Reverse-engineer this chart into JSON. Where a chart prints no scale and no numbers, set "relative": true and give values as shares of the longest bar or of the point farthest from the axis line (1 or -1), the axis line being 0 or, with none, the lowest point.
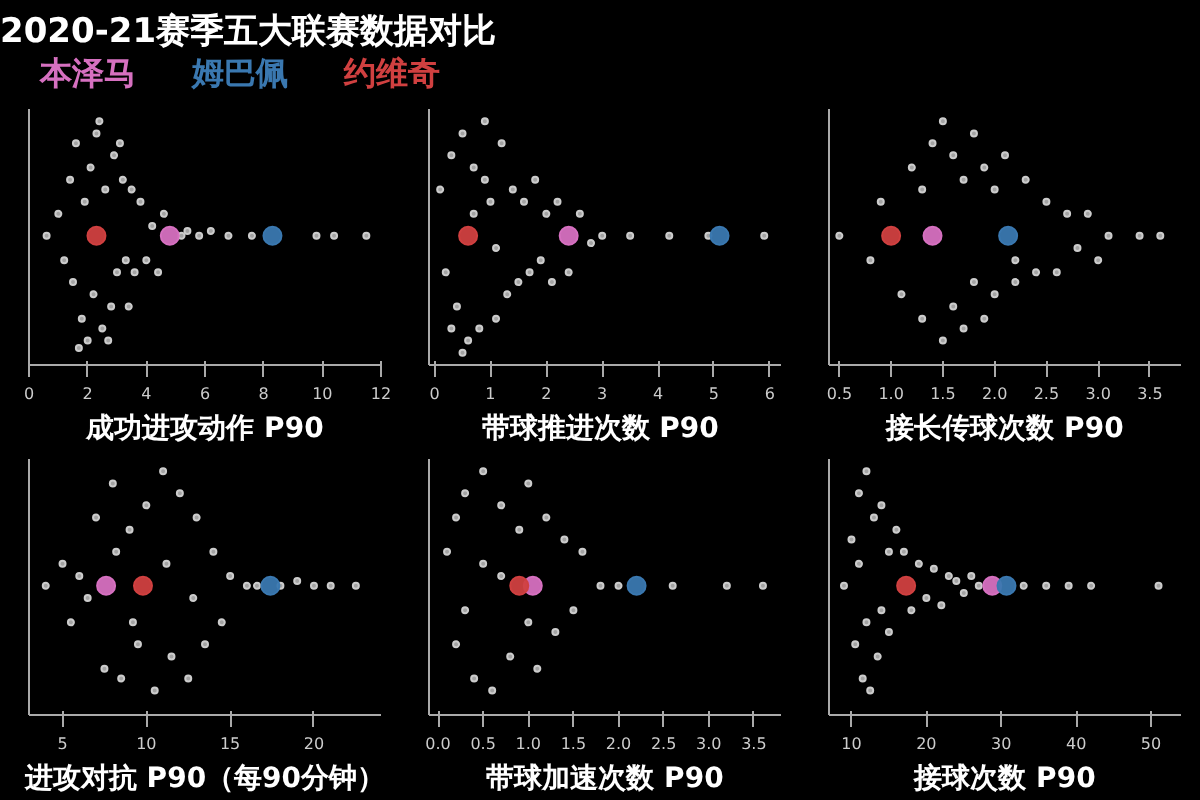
{
  "chart_data": [
    {
      "type": "scatter",
      "title": "2020-21赛季五大联赛数据对比",
      "xlabel": "成功进攻动作 P90",
      "xlim": [
        0,
        12
      ],
      "relative": true,
      "xticks": [
        0,
        2,
        4,
        6,
        8,
        10,
        12
      ],
      "tick_labels": "x",
      "grid": false,
      "legend": "top",
      "marker": "circle",
      "series": [
        {
          "color": "#cccccc",
          "x": [
            0.6,
            1.0,
            1.2,
            1.4,
            1.5,
            1.6,
            1.8,
            1.9,
            2.0,
            2.1,
            2.2,
            2.3,
            2.5,
            2.6,
            2.8,
            2.9,
            3.0,
            3.2,
            3.3,
            3.5,
            3.6,
            3.8,
            4.0,
            4.2,
            4.4,
            4.6,
            5.2,
            5.4,
            5.8,
            6.2,
            6.8,
            7.6,
            9.8,
            10.4,
            11.5,
            1.7,
            2.4,
            2.7,
            3.1,
            3.4
          ],
          "values": [
            0.53,
            0.62,
            0.43,
            0.76,
            0.34,
            0.91,
            0.19,
            0.67,
            0.1,
            0.81,
            0.29,
            0.95,
            0.15,
            0.72,
            0.24,
            0.86,
            0.38,
            0.76,
            0.43,
            0.72,
            0.38,
            0.67,
            0.43,
            0.57,
            0.38,
            0.62,
            0.53,
            0.55,
            0.53,
            0.55,
            0.53,
            0.53,
            0.53,
            0.53,
            0.53,
            0.07,
            1.0,
            0.1,
            0.91,
            0.24
          ]
        },
        {
          "name": "本泽马",
          "color": "#d670c0",
          "x": [
            4.8
          ],
          "values": [
            0.53
          ]
        },
        {
          "name": "姆巴佩",
          "color": "#3a78b0",
          "x": [
            8.3
          ],
          "values": [
            0.53
          ]
        },
        {
          "name": "约维奇",
          "color": "#d04040",
          "x": [
            2.3
          ],
          "values": [
            0.53
          ]
        }
      ]
    },
    {
      "type": "scatter",
      "xlabel": "带球推进次数  P90",
      "xlim": [
        -0.1,
        6.2
      ],
      "relative": true,
      "xticks": [
        0,
        1,
        2,
        3,
        4,
        5,
        6
      ],
      "tick_labels": "x",
      "grid": false,
      "marker": "circle",
      "series": [
        {
          "color": "#cccccc",
          "x": [
            0.1,
            0.2,
            0.3,
            0.4,
            0.5,
            0.6,
            0.7,
            0.8,
            0.9,
            1.0,
            1.1,
            1.2,
            1.3,
            1.4,
            1.5,
            1.6,
            1.7,
            1.8,
            1.9,
            2.0,
            2.1,
            2.2,
            2.4,
            2.6,
            2.8,
            3.0,
            3.5,
            4.2,
            4.9,
            5.9,
            0.5,
            0.9,
            1.1,
            0.7,
            0.3
          ],
          "values": [
            0.72,
            0.38,
            0.86,
            0.24,
            0.95,
            0.1,
            0.81,
            0.15,
            1.0,
            0.67,
            0.19,
            0.91,
            0.29,
            0.72,
            0.34,
            0.67,
            0.38,
            0.76,
            0.43,
            0.62,
            0.34,
            0.67,
            0.38,
            0.62,
            0.5,
            0.53,
            0.53,
            0.53,
            0.53,
            0.53,
            0.05,
            0.76,
            0.48,
            0.62,
            0.15
          ]
        },
        {
          "color": "#d670c0",
          "x": [
            2.4
          ],
          "values": [
            0.53
          ]
        },
        {
          "color": "#3a78b0",
          "x": [
            5.1
          ],
          "values": [
            0.53
          ]
        },
        {
          "color": "#d04040",
          "x": [
            0.6
          ],
          "values": [
            0.53
          ]
        }
      ]
    },
    {
      "type": "scatter",
      "xlabel": "接长传球次数 P90",
      "xlim": [
        0.4,
        3.8
      ],
      "relative": true,
      "xticks": [
        0.5,
        {
          "value": 1,
          "label": "1.0"
        },
        1.5,
        {
          "value": 2,
          "label": "2.0"
        },
        2.5,
        {
          "value": 3,
          "label": "3.0"
        },
        3.5
      ],
      "tick_labels": "x",
      "grid": false,
      "marker": "circle",
      "series": [
        {
          "color": "#cccccc",
          "x": [
            0.5,
            0.8,
            0.9,
            1.1,
            1.2,
            1.3,
            1.4,
            1.5,
            1.5,
            1.6,
            1.6,
            1.7,
            1.7,
            1.8,
            1.8,
            1.9,
            1.9,
            2.0,
            2.0,
            2.1,
            2.2,
            2.3,
            2.4,
            2.5,
            2.6,
            2.7,
            2.8,
            2.9,
            3.0,
            3.1,
            3.4,
            3.6,
            1.3,
            2.2
          ],
          "values": [
            0.53,
            0.43,
            0.67,
            0.29,
            0.81,
            0.19,
            0.91,
            0.1,
            1.0,
            0.24,
            0.86,
            0.15,
            0.76,
            0.95,
            0.34,
            0.81,
            0.19,
            0.72,
            0.29,
            0.86,
            0.34,
            0.76,
            0.38,
            0.67,
            0.38,
            0.62,
            0.48,
            0.62,
            0.43,
            0.53,
            0.53,
            0.53,
            0.72,
            0.43
          ]
        },
        {
          "color": "#d670c0",
          "x": [
            1.4
          ],
          "values": [
            0.53
          ]
        },
        {
          "color": "#3a78b0",
          "x": [
            2.13
          ],
          "values": [
            0.53
          ]
        },
        {
          "color": "#d04040",
          "x": [
            1.0
          ],
          "values": [
            0.53
          ]
        }
      ]
    },
    {
      "type": "scatter",
      "xlabel": "进攻对抗 P90（每90分钟）",
      "xlim": [
        3,
        24
      ],
      "relative": true,
      "xticks": [
        5,
        10,
        15,
        20
      ],
      "tick_labels": "x",
      "grid": false,
      "marker": "circle",
      "series": [
        {
          "color": "#cccccc",
          "x": [
            4.0,
            5.0,
            5.5,
            6.0,
            6.5,
            7.0,
            7.5,
            8.0,
            8.5,
            9.0,
            9.5,
            10.0,
            10.5,
            11.0,
            11.5,
            12.0,
            12.5,
            13.0,
            13.5,
            14.0,
            14.5,
            15.0,
            16.0,
            16.6,
            18.0,
            19.0,
            20.0,
            21.0,
            22.5,
            8.2,
            9.2,
            11.2,
            12.8
          ],
          "values": [
            0.53,
            0.62,
            0.38,
            0.57,
            0.48,
            0.81,
            0.19,
            0.95,
            0.15,
            0.76,
            0.29,
            0.86,
            0.1,
            1.0,
            0.24,
            0.91,
            0.15,
            0.81,
            0.29,
            0.67,
            0.38,
            0.57,
            0.53,
            0.53,
            0.53,
            0.55,
            0.53,
            0.53,
            0.53,
            0.67,
            0.38,
            0.62,
            0.48
          ]
        },
        {
          "color": "#d670c0",
          "x": [
            7.6
          ],
          "values": [
            0.53
          ]
        },
        {
          "color": "#3a78b0",
          "x": [
            17.4
          ],
          "values": [
            0.53
          ]
        },
        {
          "color": "#d04040",
          "x": [
            9.8
          ],
          "values": [
            0.53
          ]
        }
      ]
    },
    {
      "type": "scatter",
      "xlabel": "带球加速次数 P90",
      "xlim": [
        -0.1,
        3.8
      ],
      "relative": true,
      "xticks": [
        {
          "value": 0,
          "label": "0.0"
        },
        0.5,
        {
          "value": 1,
          "label": "1.0"
        },
        1.5,
        {
          "value": 2,
          "label": "2.0"
        },
        2.5,
        {
          "value": 3,
          "label": "3.0"
        },
        3.5
      ],
      "tick_labels": "x",
      "grid": false,
      "marker": "circle",
      "series": [
        {
          "color": "#cccccc",
          "x": [
            0.1,
            0.2,
            0.3,
            0.4,
            0.5,
            0.6,
            0.7,
            0.8,
            0.9,
            1.0,
            1.1,
            1.2,
            1.3,
            1.4,
            1.5,
            1.6,
            1.8,
            2.0,
            2.6,
            3.2,
            3.6,
            0.3,
            0.5,
            0.7,
            1.0,
            0.2
          ],
          "values": [
            0.67,
            0.29,
            0.91,
            0.15,
            1.0,
            0.1,
            0.86,
            0.24,
            0.76,
            0.95,
            0.19,
            0.81,
            0.34,
            0.72,
            0.43,
            0.67,
            0.53,
            0.53,
            0.53,
            0.53,
            0.53,
            0.43,
            0.62,
            0.57,
            0.38,
            0.81
          ]
        },
        {
          "color": "#d670c0",
          "x": [
            1.05
          ],
          "values": [
            0.53
          ]
        },
        {
          "color": "#3a78b0",
          "x": [
            2.2
          ],
          "values": [
            0.53
          ]
        },
        {
          "color": "#d04040",
          "x": [
            0.9
          ],
          "values": [
            0.53
          ]
        }
      ]
    },
    {
      "type": "scatter",
      "xlabel": "接球次数 P90",
      "xlim": [
        7,
        54
      ],
      "relative": true,
      "xticks": [
        10,
        20,
        30,
        40,
        50
      ],
      "tick_labels": "x",
      "grid": false,
      "marker": "circle",
      "series": [
        {
          "color": "#cccccc",
          "x": [
            9,
            10,
            10.5,
            11,
            11.5,
            12,
            12.5,
            13,
            13.5,
            14,
            15,
            16,
            17,
            18,
            19,
            20,
            21,
            22,
            23,
            24,
            25,
            26,
            27,
            33,
            36,
            39,
            42,
            51,
            11,
            12,
            14,
            15
          ],
          "values": [
            0.53,
            0.72,
            0.29,
            0.91,
            0.15,
            1.0,
            0.1,
            0.81,
            0.24,
            0.86,
            0.34,
            0.76,
            0.67,
            0.43,
            0.62,
            0.48,
            0.6,
            0.45,
            0.57,
            0.55,
            0.5,
            0.57,
            0.53,
            0.53,
            0.53,
            0.53,
            0.53,
            0.53,
            0.62,
            0.38,
            0.43,
            0.67
          ]
        },
        {
          "color": "#d670c0",
          "x": [
            28.8
          ],
          "values": [
            0.53
          ]
        },
        {
          "color": "#3a78b0",
          "x": [
            30.7
          ],
          "values": [
            0.53
          ]
        },
        {
          "color": "#d04040",
          "x": [
            17.3
          ],
          "values": [
            0.53
          ]
        }
      ]
    }
  ]
}
